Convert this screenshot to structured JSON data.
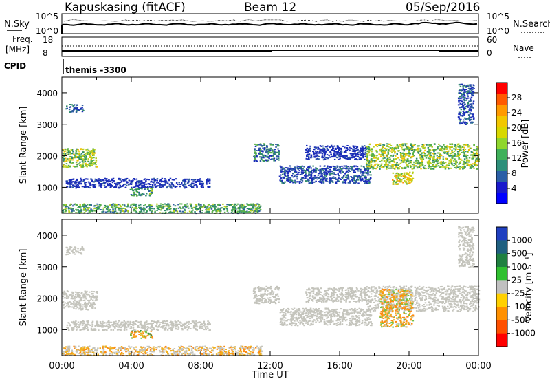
{
  "header": {
    "station": "Kapuskasing (fitACF)",
    "beam": "Beam 12",
    "date": "05/Sep/2016"
  },
  "top_panel": {
    "left_label": "N.Sky",
    "left_ticks": [
      "10^5",
      "10^0"
    ],
    "right_ticks": [
      "10^5",
      "10^0"
    ],
    "right_label": "N.Search"
  },
  "freq_panel": {
    "left_label_1": "Freq.",
    "left_label_2": "[MHz]",
    "left_ticks": [
      "18",
      "8"
    ],
    "right_ticks": [
      "60",
      "0"
    ],
    "right_label": "Nave",
    "cpid_label": "CPID",
    "cpid_text": "themis -3300"
  },
  "colorbars": {
    "power": {
      "label": "Power [dB]",
      "ticks": [
        "28",
        "24",
        "20",
        "16",
        "12",
        "8",
        "4"
      ],
      "colors": [
        "#ff0000",
        "#ff5a00",
        "#ff9a00",
        "#f2c700",
        "#d8d800",
        "#8fd62e",
        "#3fb05a",
        "#2e8f7a",
        "#2b5fa6",
        "#1a1acc",
        "#0000ff"
      ]
    },
    "velocity": {
      "label": "Velocity [m s⁻¹]",
      "ticks": [
        "1000",
        "500",
        "100",
        "25",
        "-25",
        "-100",
        "-500",
        "-1000"
      ],
      "colors": [
        "#2040c0",
        "#206080",
        "#208040",
        "#30c030",
        "#c0c0c0",
        "#ffd000",
        "#ff9000",
        "#ff5000",
        "#ff0000"
      ]
    },
    "power_scale_colors": [
      "#1a2cb8",
      "#2f5fa0",
      "#2e8a6a",
      "#57b04a",
      "#b8d020",
      "#f0c000",
      "#ff8c00",
      "#ff3c00"
    ],
    "velocity_scale_colors": [
      "#c4c4bc",
      "#c4c4bc",
      "#c4c4bc",
      "#f0b020",
      "#ff8a10",
      "#6cc24a",
      "#3a8a40",
      "#2c4fb0"
    ]
  },
  "chart_data": [
    {
      "type": "heatmap",
      "title": "",
      "xlabel": "Time UT",
      "ylabel": "Slant Range [km]",
      "xlim": [
        0,
        24
      ],
      "ylim": [
        180,
        4500
      ],
      "x_ticks": [
        "00:00",
        "04:00",
        "08:00",
        "12:00",
        "16:00",
        "20:00",
        "00:00"
      ],
      "y_ticks": [
        "1000",
        "2000",
        "3000",
        "4000"
      ],
      "y_tick_values": [
        1000,
        2000,
        3000,
        4000
      ],
      "quantity": "Power [dB]",
      "regions": [
        {
          "t": [
            0.0,
            2.0
          ],
          "r": [
            1650,
            2250
          ],
          "level": 4
        },
        {
          "t": [
            0.2,
            1.2
          ],
          "r": [
            3400,
            3650
          ],
          "level": 1
        },
        {
          "t": [
            0.0,
            11.5
          ],
          "r": [
            200,
            500
          ],
          "level": 3
        },
        {
          "t": [
            3.9,
            5.2
          ],
          "r": [
            750,
            1000
          ],
          "level": 3
        },
        {
          "t": [
            0.2,
            8.5
          ],
          "r": [
            1000,
            1300
          ],
          "level": 0
        },
        {
          "t": [
            11.0,
            12.5
          ],
          "r": [
            1850,
            2400
          ],
          "level": 2
        },
        {
          "t": [
            12.5,
            17.8
          ],
          "r": [
            1150,
            1700
          ],
          "level": 1
        },
        {
          "t": [
            14.0,
            17.5
          ],
          "r": [
            1900,
            2350
          ],
          "level": 0
        },
        {
          "t": [
            17.5,
            24.0
          ],
          "r": [
            1600,
            2400
          ],
          "level": 4
        },
        {
          "t": [
            19.0,
            20.2
          ],
          "r": [
            1100,
            1500
          ],
          "level": 5
        },
        {
          "t": [
            22.8,
            23.7
          ],
          "r": [
            3000,
            4300
          ],
          "level": 1
        }
      ]
    },
    {
      "type": "heatmap",
      "title": "",
      "xlabel": "Time UT",
      "ylabel": "Slant Range [km]",
      "xlim": [
        0,
        24
      ],
      "ylim": [
        180,
        4500
      ],
      "x_ticks": [
        "00:00",
        "04:00",
        "08:00",
        "12:00",
        "16:00",
        "20:00",
        "00:00"
      ],
      "y_ticks": [
        "1000",
        "2000",
        "3000",
        "4000"
      ],
      "y_tick_values": [
        1000,
        2000,
        3000,
        4000
      ],
      "quantity": "Velocity [m s-1]",
      "regions": [
        {
          "t": [
            0.0,
            2.0
          ],
          "r": [
            1650,
            2250
          ],
          "level": 0
        },
        {
          "t": [
            0.2,
            1.2
          ],
          "r": [
            3400,
            3650
          ],
          "level": 0
        },
        {
          "t": [
            0.0,
            11.5
          ],
          "r": [
            200,
            500
          ],
          "level": 3
        },
        {
          "t": [
            3.9,
            5.2
          ],
          "r": [
            750,
            1000
          ],
          "level": 5
        },
        {
          "t": [
            0.2,
            8.5
          ],
          "r": [
            1000,
            1300
          ],
          "level": 0
        },
        {
          "t": [
            11.0,
            12.5
          ],
          "r": [
            1850,
            2400
          ],
          "level": 0
        },
        {
          "t": [
            12.5,
            17.8
          ],
          "r": [
            1150,
            1700
          ],
          "level": 0
        },
        {
          "t": [
            14.0,
            17.5
          ],
          "r": [
            1900,
            2350
          ],
          "level": 0
        },
        {
          "t": [
            17.5,
            24.0
          ],
          "r": [
            1600,
            2400
          ],
          "level": 0
        },
        {
          "t": [
            18.3,
            20.2
          ],
          "r": [
            1100,
            2300
          ],
          "level": 4
        },
        {
          "t": [
            22.8,
            23.7
          ],
          "r": [
            3000,
            4300
          ],
          "level": 0
        }
      ]
    }
  ]
}
